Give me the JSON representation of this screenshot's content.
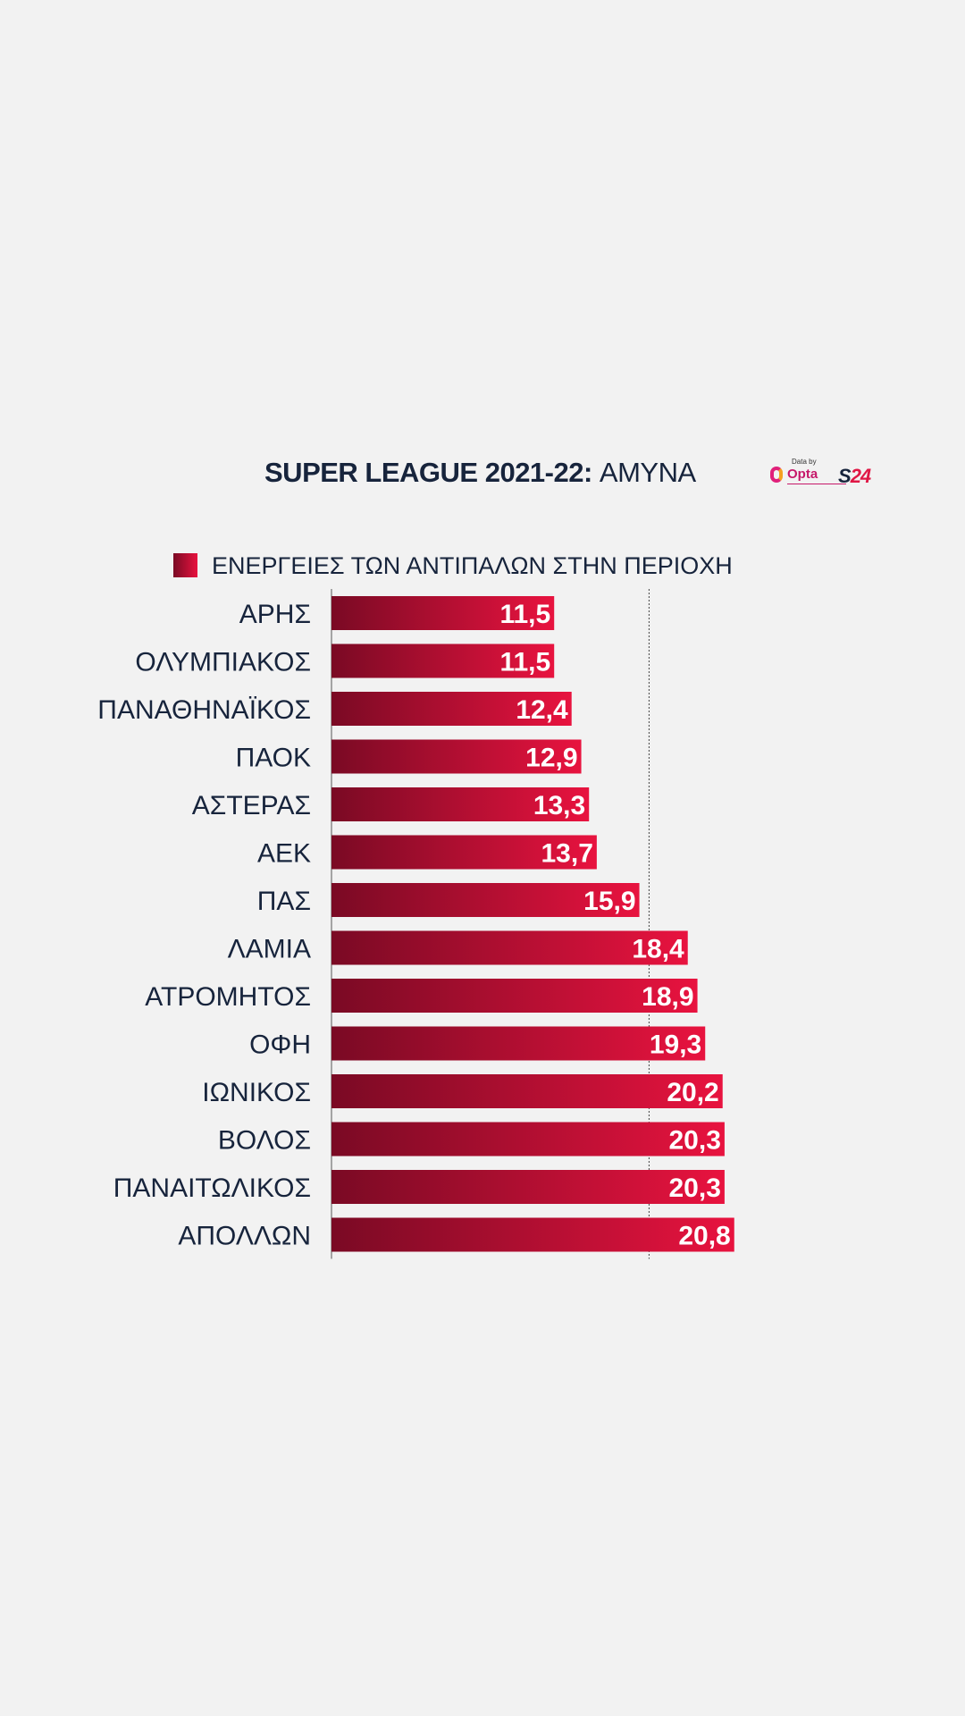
{
  "header": {
    "title_bold": "SUPER LEAGUE 2021-22:",
    "title_rest": " ΑΜΥΝΑ",
    "data_by": "Data by",
    "opta": "Opta",
    "s24_s": "S",
    "s24_rest": "24"
  },
  "colors": {
    "bar_dark": "#7a0a24",
    "bar_bright": "#e8133f",
    "text": "#17243c",
    "background": "#f2f2f2"
  },
  "chart_data": {
    "type": "bar",
    "orientation": "horizontal",
    "title": "SUPER LEAGUE 2021-22: ΑΜΥΝΑ",
    "legend": [
      "ΕΝΕΡΓΕΙΕΣ ΤΩΝ ΑΝΤΙΠΑΛΩΝ ΣΤΗΝ ΠΕΡΙΟΧΗ"
    ],
    "categories": [
      "ΑΡΗΣ",
      "ΟΛΥΜΠΙΑΚΟΣ",
      "ΠΑΝΑΘΗΝΑΪΚΟΣ",
      "ΠΑΟΚ",
      "ΑΣΤΕΡΑΣ",
      "ΑΕΚ",
      "ΠΑΣ",
      "ΛΑΜΙΑ",
      "ΑΤΡΟΜΗΤΟΣ",
      "ΟΦΗ",
      "ΙΩΝΙΚΟΣ",
      "ΒΟΛΟΣ",
      "ΠΑΝΑΙΤΩΛΙΚΟΣ",
      "ΑΠΟΛΛΩΝ"
    ],
    "values": [
      11.5,
      11.5,
      12.4,
      12.9,
      13.3,
      13.7,
      15.9,
      18.4,
      18.9,
      19.3,
      20.2,
      20.3,
      20.3,
      20.8
    ],
    "value_labels": [
      "11,5",
      "11,5",
      "12,4",
      "12,9",
      "13,3",
      "13,7",
      "15,9",
      "18,4",
      "18,9",
      "19,3",
      "20,2",
      "20,3",
      "20,3",
      "20,8"
    ],
    "xlim": [
      0,
      21
    ],
    "reference_line": 16.4,
    "grid": false,
    "legend_position": "top-left"
  }
}
